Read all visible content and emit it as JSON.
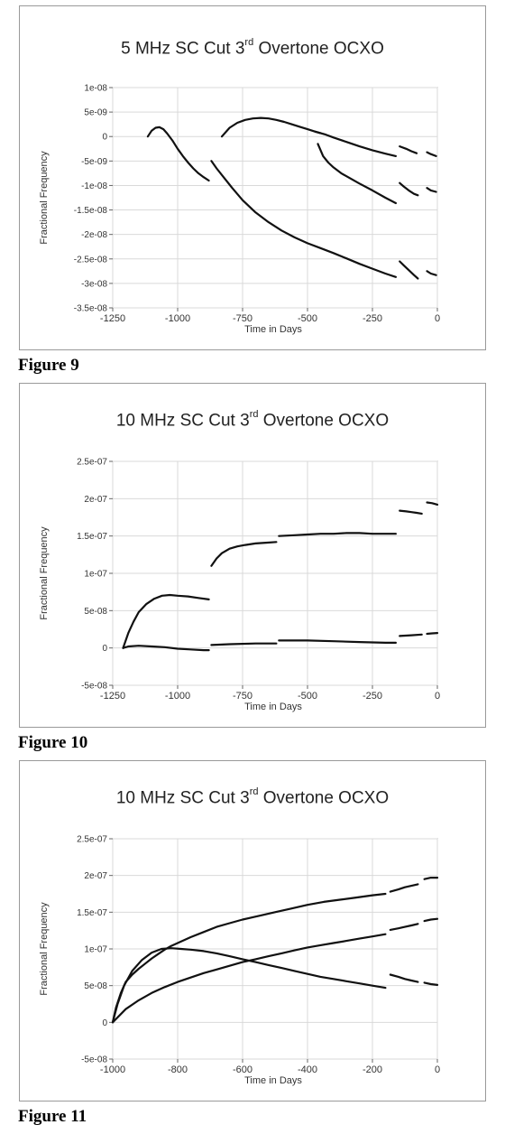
{
  "chart_data": [
    {
      "type": "line",
      "title": "5 MHz SC Cut ",
      "title_sup": "rd",
      "title_rest": " Overtone OCXO",
      "title_num": "3",
      "xlabel": "Time in Days",
      "ylabel": "Fractional Frequency",
      "xlim": [
        -1250,
        0
      ],
      "ylim": [
        -3.5e-08,
        1e-08
      ],
      "xticks": [
        -1250,
        -1000,
        -750,
        -500,
        -250,
        0
      ],
      "xtick_labels": [
        "-1250",
        "-1000",
        "-750",
        "-500",
        "-250",
        "0"
      ],
      "yticks": [
        1e-08,
        5e-09,
        0,
        -5e-09,
        -1e-08,
        -1.5e-08,
        -2e-08,
        -2.5e-08,
        -3e-08,
        -3.5e-08
      ],
      "ytick_labels": [
        "1e-08",
        "5e-09",
        "0",
        "-5e-09",
        "-1e-08",
        "-1.5e-08",
        "-2e-08",
        "-2.5e-08",
        "-3e-08",
        "-3.5e-08"
      ],
      "grid": true,
      "caption": "Figure 9",
      "series": [
        {
          "x": [
            -1115,
            -1100,
            -1085,
            -1070,
            -1055,
            -1040,
            -1020,
            -1000,
            -980,
            -960,
            -940,
            -920,
            -900,
            -880
          ],
          "y": [
            0,
            1.2e-09,
            1.8e-09,
            1.9e-09,
            1.5e-09,
            6e-10,
            -8e-10,
            -2.5e-09,
            -4e-09,
            -5.3e-09,
            -6.5e-09,
            -7.5e-09,
            -8.3e-09,
            -9e-09
          ]
        },
        {
          "x": [
            -870,
            -850,
            -820,
            -790,
            -750,
            -700,
            -650,
            -600,
            -550,
            -500,
            -450,
            -400,
            -350,
            -300,
            -250,
            -200,
            -160
          ],
          "y": [
            -5e-09,
            -6.5e-09,
            -8.5e-09,
            -1.05e-08,
            -1.3e-08,
            -1.55e-08,
            -1.75e-08,
            -1.92e-08,
            -2.06e-08,
            -2.18e-08,
            -2.28e-08,
            -2.38e-08,
            -2.49e-08,
            -2.6e-08,
            -2.7e-08,
            -2.8e-08,
            -2.87e-08
          ]
        },
        {
          "x": [
            -830,
            -800,
            -770,
            -740,
            -710,
            -680,
            -650,
            -620,
            -590,
            -560,
            -530,
            -500,
            -470,
            -450
          ],
          "y": [
            0,
            1.8e-09,
            2.8e-09,
            3.4e-09,
            3.7e-09,
            3.8e-09,
            3.7e-09,
            3.4e-09,
            3e-09,
            2.5e-09,
            2e-09,
            1.5e-09,
            1e-09,
            7e-10
          ]
        },
        {
          "x": [
            -470,
            -430,
            -400,
            -350,
            -300,
            -250,
            -200,
            -160
          ],
          "y": [
            1e-09,
            4e-10,
            -2e-10,
            -1.1e-09,
            -2e-09,
            -2.8e-09,
            -3.5e-09,
            -4e-09
          ]
        },
        {
          "x": [
            -460,
            -440,
            -420,
            -400,
            -370,
            -340,
            -300,
            -250,
            -200,
            -160
          ],
          "y": [
            -1.5e-09,
            -4e-09,
            -5.3e-09,
            -6.3e-09,
            -7.5e-09,
            -8.4e-09,
            -9.6e-09,
            -1.1e-08,
            -1.25e-08,
            -1.36e-08
          ]
        },
        {
          "x": [
            -145,
            -120,
            -100,
            -80
          ],
          "y": [
            -2e-09,
            -2.5e-09,
            -3e-09,
            -3.4e-09
          ]
        },
        {
          "x": [
            -145,
            -130,
            -110,
            -90,
            -75
          ],
          "y": [
            -9.5e-09,
            -1.02e-08,
            -1.1e-08,
            -1.17e-08,
            -1.2e-08
          ]
        },
        {
          "x": [
            -145,
            -130,
            -110,
            -90,
            -75
          ],
          "y": [
            -2.55e-08,
            -2.63e-08,
            -2.73e-08,
            -2.83e-08,
            -2.9e-08
          ]
        },
        {
          "x": [
            -40,
            -25,
            -5
          ],
          "y": [
            -3.2e-09,
            -3.6e-09,
            -4e-09
          ]
        },
        {
          "x": [
            -40,
            -25,
            -5
          ],
          "y": [
            -1.05e-08,
            -1.1e-08,
            -1.13e-08
          ]
        },
        {
          "x": [
            -40,
            -25,
            -5
          ],
          "y": [
            -2.75e-08,
            -2.8e-08,
            -2.83e-08
          ]
        }
      ]
    },
    {
      "type": "line",
      "title": "10 MHz SC Cut ",
      "title_sup": "rd",
      "title_rest": " Overtone OCXO",
      "title_num": "3",
      "xlabel": "Time in Days",
      "ylabel": "Fractional Frequency",
      "xlim": [
        -1250,
        0
      ],
      "ylim": [
        -5e-08,
        2.5e-07
      ],
      "xticks": [
        -1250,
        -1000,
        -750,
        -500,
        -250,
        0
      ],
      "xtick_labels": [
        "-1250",
        "-1000",
        "-750",
        "-500",
        "-250",
        "0"
      ],
      "yticks": [
        2.5e-07,
        2e-07,
        1.5e-07,
        1e-07,
        5e-08,
        0,
        -5e-08
      ],
      "ytick_labels": [
        "2.5e-07",
        "2e-07",
        "1.5e-07",
        "1e-07",
        "5e-08",
        "0",
        "-5e-08"
      ],
      "grid": true,
      "caption": "Figure 10",
      "series": [
        {
          "x": [
            -1210,
            -1190,
            -1170,
            -1150,
            -1120,
            -1090,
            -1060,
            -1030,
            -1000,
            -960,
            -920,
            -880
          ],
          "y": [
            0,
            2e-08,
            3.5e-08,
            4.8e-08,
            5.9e-08,
            6.6e-08,
            7e-08,
            7.1e-08,
            7e-08,
            6.9e-08,
            6.7e-08,
            6.5e-08
          ]
        },
        {
          "x": [
            -1210,
            -1190,
            -1150,
            -1100,
            -1050,
            -1000,
            -950,
            -900,
            -880
          ],
          "y": [
            0,
            2e-09,
            3e-09,
            2e-09,
            1e-09,
            -1e-09,
            -2e-09,
            -3e-09,
            -3e-09
          ]
        },
        {
          "x": [
            -870,
            -850,
            -830,
            -800,
            -770,
            -740,
            -700,
            -660,
            -620
          ],
          "y": [
            1.1e-07,
            1.2e-07,
            1.27e-07,
            1.33e-07,
            1.36e-07,
            1.38e-07,
            1.4e-07,
            1.41e-07,
            1.42e-07
          ]
        },
        {
          "x": [
            -870,
            -800,
            -700,
            -620
          ],
          "y": [
            4e-09,
            5e-09,
            6e-09,
            6e-09
          ]
        },
        {
          "x": [
            -610,
            -550,
            -500,
            -450,
            -400,
            -350,
            -300,
            -250,
            -200,
            -160
          ],
          "y": [
            1.5e-07,
            1.51e-07,
            1.52e-07,
            1.53e-07,
            1.53e-07,
            1.54e-07,
            1.54e-07,
            1.53e-07,
            1.53e-07,
            1.53e-07
          ]
        },
        {
          "x": [
            -610,
            -500,
            -400,
            -300,
            -200,
            -160
          ],
          "y": [
            1e-08,
            1e-08,
            9e-09,
            8e-09,
            7e-09,
            7e-09
          ]
        },
        {
          "x": [
            -145,
            -120,
            -100,
            -80,
            -60
          ],
          "y": [
            1.84e-07,
            1.83e-07,
            1.82e-07,
            1.81e-07,
            1.8e-07
          ]
        },
        {
          "x": [
            -145,
            -100,
            -60
          ],
          "y": [
            1.6e-08,
            1.7e-08,
            1.8e-08
          ]
        },
        {
          "x": [
            -40,
            -20,
            0
          ],
          "y": [
            1.95e-07,
            1.94e-07,
            1.92e-07
          ]
        },
        {
          "x": [
            -40,
            -20,
            0
          ],
          "y": [
            1.9e-08,
            1.95e-08,
            2e-08
          ]
        }
      ]
    },
    {
      "type": "line",
      "title": "10 MHz SC Cut ",
      "title_sup": "rd",
      "title_rest": " Overtone OCXO",
      "title_num": "3",
      "xlabel": "Time in Days",
      "ylabel": "Fractional Frequency",
      "xlim": [
        -1000,
        0
      ],
      "ylim": [
        -5e-08,
        2.5e-07
      ],
      "xticks": [
        -1000,
        -800,
        -600,
        -400,
        -200,
        0
      ],
      "xtick_labels": [
        "-1000",
        "-800",
        "-600",
        "-400",
        "-200",
        "0"
      ],
      "yticks": [
        2.5e-07,
        2e-07,
        1.5e-07,
        1e-07,
        5e-08,
        0,
        -5e-08
      ],
      "ytick_labels": [
        "2.5e-07",
        "2e-07",
        "1.5e-07",
        "1e-07",
        "5e-08",
        "0",
        "-5e-08"
      ],
      "grid": true,
      "caption": "Figure 11",
      "series": [
        {
          "x": [
            -1000,
            -990,
            -975,
            -960,
            -940,
            -920,
            -900,
            -880,
            -860,
            -840,
            -820,
            -800,
            -760,
            -720,
            -680,
            -640,
            -600,
            -550,
            -500,
            -450,
            -400,
            -350,
            -300,
            -250,
            -200,
            -160
          ],
          "y": [
            0,
            2e-08,
            4e-08,
            5.5e-08,
            6.5e-08,
            7.3e-08,
            8e-08,
            8.7e-08,
            9.3e-08,
            9.9e-08,
            1.04e-07,
            1.08e-07,
            1.16e-07,
            1.23e-07,
            1.3e-07,
            1.35e-07,
            1.4e-07,
            1.45e-07,
            1.5e-07,
            1.55e-07,
            1.6e-07,
            1.64e-07,
            1.67e-07,
            1.7e-07,
            1.73e-07,
            1.75e-07
          ]
        },
        {
          "x": [
            -145,
            -120,
            -100,
            -80,
            -60
          ],
          "y": [
            1.78e-07,
            1.81e-07,
            1.84e-07,
            1.86e-07,
            1.88e-07
          ]
        },
        {
          "x": [
            -40,
            -20,
            0
          ],
          "y": [
            1.95e-07,
            1.97e-07,
            1.97e-07
          ]
        },
        {
          "x": [
            -1000,
            -985,
            -965,
            -940,
            -910,
            -880,
            -850,
            -820,
            -790,
            -760,
            -720,
            -680,
            -640,
            -600,
            -560,
            -520,
            -480,
            -440,
            -400,
            -360,
            -320,
            -280,
            -240,
            -200,
            -160
          ],
          "y": [
            0,
            2.5e-08,
            5e-08,
            7e-08,
            8.5e-08,
            9.5e-08,
            1e-07,
            1.01e-07,
            1e-07,
            9.9e-08,
            9.7e-08,
            9.4e-08,
            9e-08,
            8.6e-08,
            8.2e-08,
            7.8e-08,
            7.4e-08,
            7e-08,
            6.6e-08,
            6.2e-08,
            5.9e-08,
            5.6e-08,
            5.3e-08,
            5e-08,
            4.7e-08
          ]
        },
        {
          "x": [
            -145,
            -120,
            -100,
            -80,
            -60
          ],
          "y": [
            6.5e-08,
            6.2e-08,
            5.9e-08,
            5.7e-08,
            5.5e-08
          ]
        },
        {
          "x": [
            -40,
            -20,
            0
          ],
          "y": [
            5.4e-08,
            5.2e-08,
            5.1e-08
          ]
        },
        {
          "x": [
            -1000,
            -960,
            -920,
            -880,
            -840,
            -800,
            -760,
            -720,
            -680,
            -640,
            -600,
            -560,
            -520,
            -480,
            -440,
            -400,
            -360,
            -320,
            -280,
            -240,
            -200,
            -160
          ],
          "y": [
            0,
            1.8e-08,
            3e-08,
            4e-08,
            4.8e-08,
            5.5e-08,
            6.1e-08,
            6.7e-08,
            7.2e-08,
            7.7e-08,
            8.2e-08,
            8.6e-08,
            9e-08,
            9.4e-08,
            9.8e-08,
            1.02e-07,
            1.05e-07,
            1.08e-07,
            1.11e-07,
            1.14e-07,
            1.17e-07,
            1.2e-07
          ]
        },
        {
          "x": [
            -145,
            -120,
            -100,
            -80,
            -60
          ],
          "y": [
            1.26e-07,
            1.28e-07,
            1.3e-07,
            1.32e-07,
            1.34e-07
          ]
        },
        {
          "x": [
            -40,
            -20,
            0
          ],
          "y": [
            1.38e-07,
            1.4e-07,
            1.41e-07
          ]
        }
      ]
    }
  ]
}
